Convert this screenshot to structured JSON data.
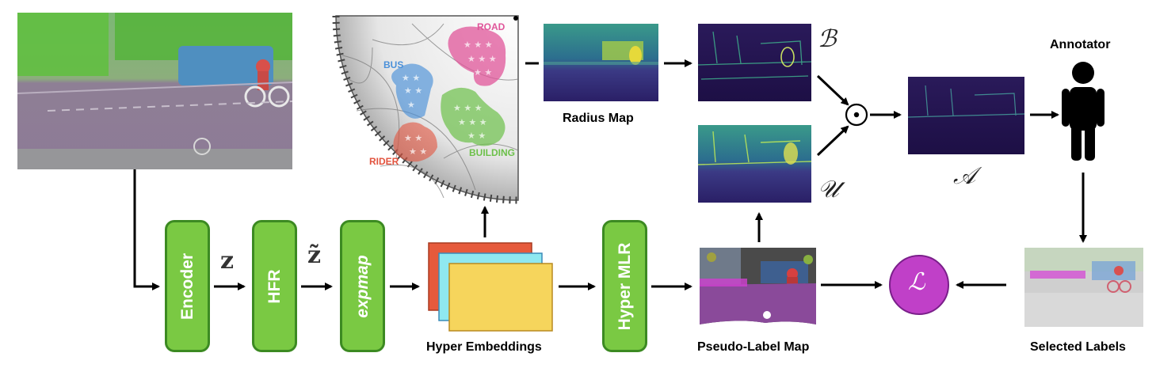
{
  "blocks": {
    "encoder": "Encoder",
    "hfr": "HFR",
    "expmap": "expmap",
    "hyper_mlr": "Hyper MLR"
  },
  "symbols": {
    "z": "z",
    "z_tilde": "z̃",
    "boundary": "ℬ",
    "uncertainty": "𝒰",
    "acquisition": "𝒜",
    "loss": "ℒ",
    "hadamard": "⊙"
  },
  "captions": {
    "radius_map": "Radius Map",
    "hyper_embeddings": "Hyper Embeddings",
    "pseudo_label_map": "Pseudo-Label Map",
    "selected_labels": "Selected Labels",
    "annotator": "Annotator"
  },
  "poincare_classes": {
    "road": "ROAD",
    "bus": "BUS",
    "building": "BUILDING",
    "rider": "RIDER"
  },
  "colors": {
    "block_fill": "#7ac943",
    "block_border": "#3c8a22",
    "loss_fill": "#c040c8",
    "road": "#e0559a",
    "bus": "#4a90d9",
    "building": "#6cc04a",
    "rider": "#e2533e",
    "embed_red": "#e65a3c",
    "embed_cyan": "#8fe8f0",
    "embed_yellow": "#f6d55c"
  },
  "icons": {
    "annotator": "person-icon",
    "loss": "loss-circle-icon",
    "hadamard": "hadamard-product-icon"
  }
}
